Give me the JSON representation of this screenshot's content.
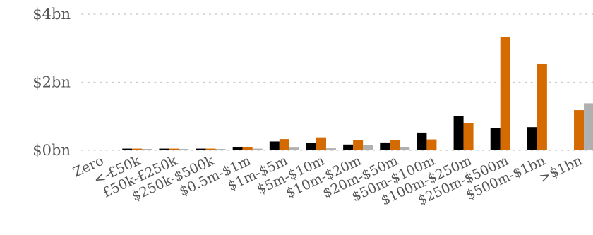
{
  "chart_data": {
    "type": "bar",
    "title": "",
    "xlabel": "",
    "ylabel": "",
    "ylim": [
      0,
      4
    ],
    "y_ticks": [
      {
        "value": 0,
        "label": "$0bn"
      },
      {
        "value": 2,
        "label": "$2bn"
      },
      {
        "value": 4,
        "label": "$4bn"
      }
    ],
    "grid": true,
    "legend": "none",
    "categories": [
      "Zero",
      "<-£50k",
      "£50k-£250k",
      "$250k-$500k",
      "$0.5m-$1m",
      "$1m-$5m",
      "$5m-$10m",
      "$10m-$20m",
      "$20m-$50m",
      "$50m-$100m",
      "$100m-$250m",
      "$250m-$500m",
      "$500m-$1bn",
      ">$1bn"
    ],
    "series": [
      {
        "color": "#000000",
        "values": [
          0,
          0.05,
          0.05,
          0.05,
          0.1,
          0.26,
          0.22,
          0.17,
          0.23,
          0.52,
          1.0,
          0.66,
          0.68,
          0
        ]
      },
      {
        "color": "#d46a00",
        "values": [
          0,
          0.05,
          0.05,
          0.05,
          0.1,
          0.33,
          0.38,
          0.29,
          0.31,
          0.32,
          0.8,
          3.32,
          2.55,
          1.18
        ]
      },
      {
        "color": "#b0b0b0",
        "values": [
          0,
          0.04,
          0.04,
          0.04,
          0.05,
          0.08,
          0.06,
          0.15,
          0.1,
          0,
          0,
          0,
          0,
          1.38
        ]
      }
    ]
  }
}
